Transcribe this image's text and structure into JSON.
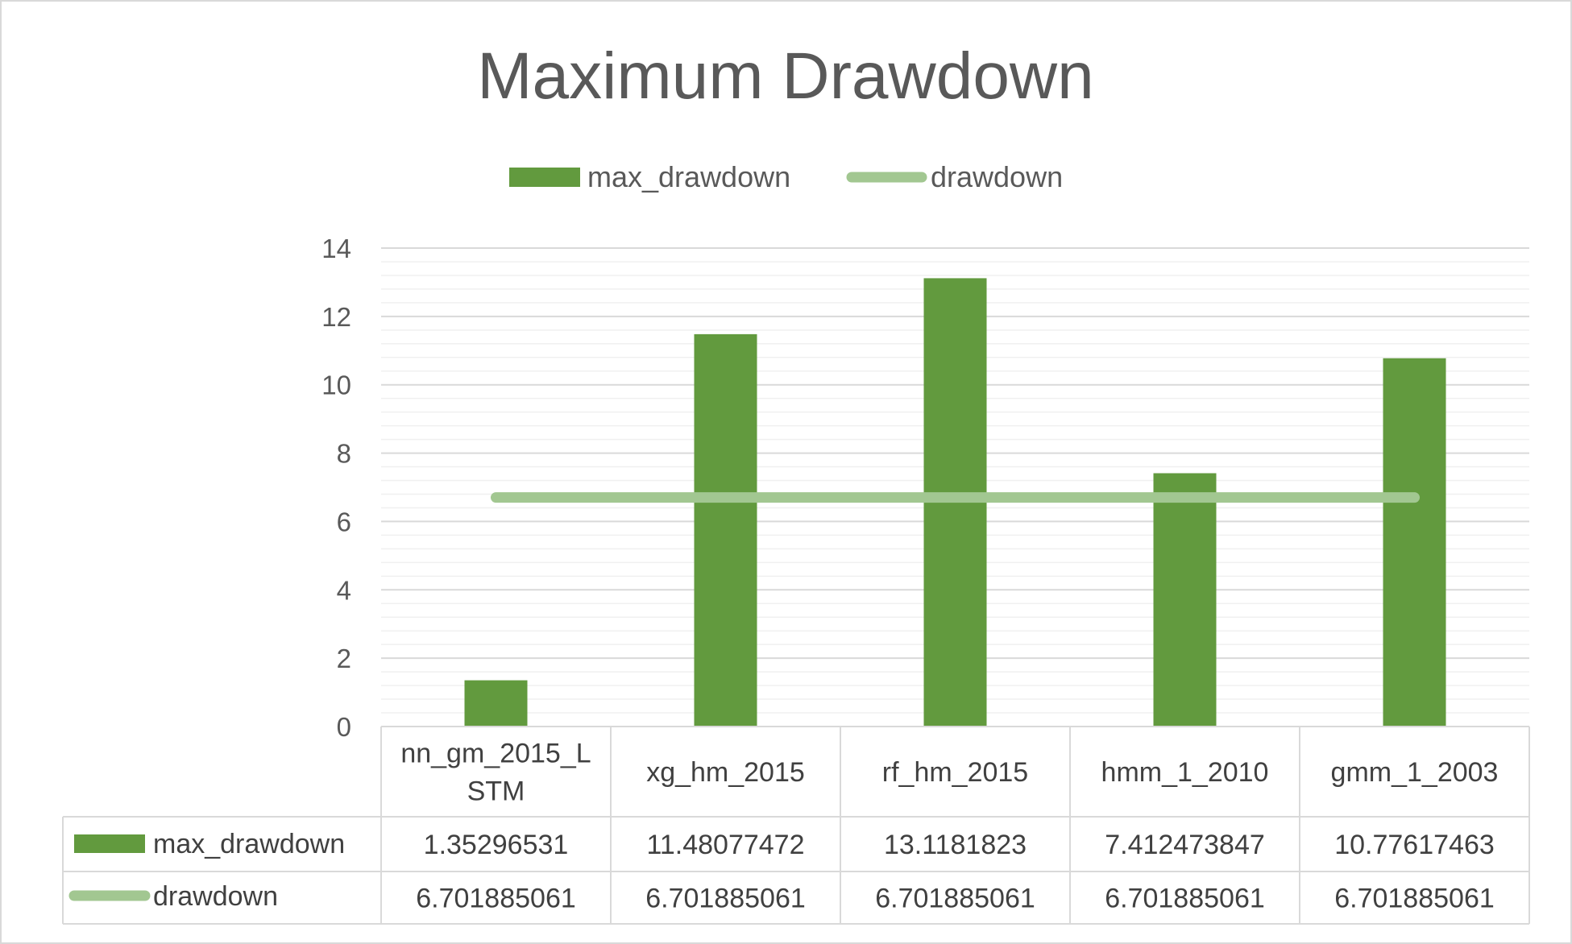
{
  "chart_data": {
    "type": "bar",
    "title": "Maximum Drawdown",
    "categories": [
      "nn_gm_2015_LSTM",
      "xg_hm_2015",
      "rf_hm_2015",
      "hmm_1_2010",
      "gmm_1_2003"
    ],
    "category_lines": [
      [
        "nn_gm_2015_L",
        "STM"
      ],
      [
        "xg_hm_2015"
      ],
      [
        "rf_hm_2015"
      ],
      [
        "hmm_1_2010"
      ],
      [
        "gmm_1_2003"
      ]
    ],
    "series": [
      {
        "name": "max_drawdown",
        "type": "bar",
        "color": "#629a3e",
        "values": [
          1.35296531,
          11.48077472,
          13.1181823,
          7.412473847,
          10.77617463
        ],
        "labels": [
          "1.35296531",
          "11.48077472",
          "13.1181823",
          "7.412473847",
          "10.77617463"
        ]
      },
      {
        "name": "drawdown",
        "type": "line",
        "color": "#a2c791",
        "values": [
          6.701885061,
          6.701885061,
          6.701885061,
          6.701885061,
          6.701885061
        ],
        "labels": [
          "6.701885061",
          "6.701885061",
          "6.701885061",
          "6.701885061",
          "6.701885061"
        ]
      }
    ],
    "ylim": [
      0,
      14
    ],
    "yticks": [
      0,
      2,
      4,
      6,
      8,
      10,
      12,
      14
    ],
    "xlabel": "",
    "ylabel": "",
    "grid": true,
    "legend_position": "top",
    "data_table": true
  }
}
